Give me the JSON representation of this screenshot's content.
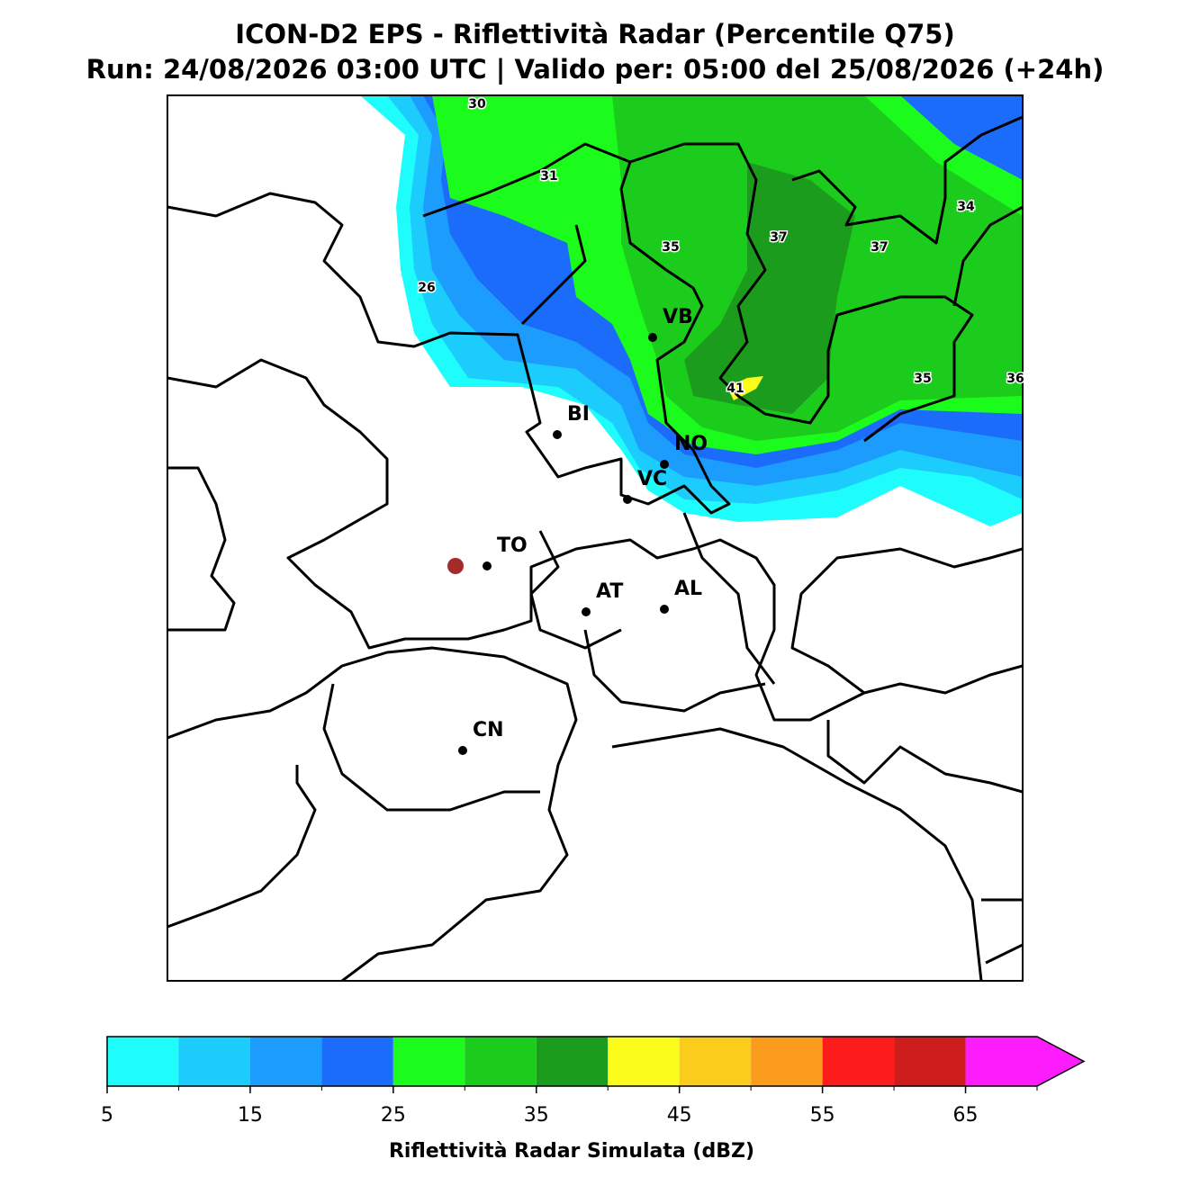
{
  "header": {
    "title": "ICON-D2 EPS - Riflettività Radar (Percentile Q75)",
    "subtitle": "Run: 24/08/2026 03:00 UTC | Valido per: 05:00 del 25/08/2026 (+24h)"
  },
  "map": {
    "cities": [
      "VB",
      "BI",
      "NO",
      "VC",
      "TO",
      "AT",
      "AL",
      "CN"
    ],
    "contour_labels": [
      30,
      31,
      35,
      37,
      37,
      34,
      26,
      35,
      36,
      41
    ]
  },
  "colorbar": {
    "label": "Riflettività Radar Simulata (dBZ)",
    "boundaries": [
      5,
      10,
      15,
      20,
      25,
      30,
      35,
      40,
      45,
      50,
      55,
      60,
      65,
      70
    ],
    "colors": [
      "#1efcfc",
      "#1cccfc",
      "#1c9cfc",
      "#1c6cfc",
      "#1cfc1c",
      "#1ccc1c",
      "#1c9c1c",
      "#fcfc1c",
      "#fccc1c",
      "#fc9c1c",
      "#fc1c1c",
      "#cc1c1c",
      "#fc1cfc"
    ],
    "ticks": [
      5,
      15,
      25,
      35,
      45,
      55,
      65
    ]
  }
}
